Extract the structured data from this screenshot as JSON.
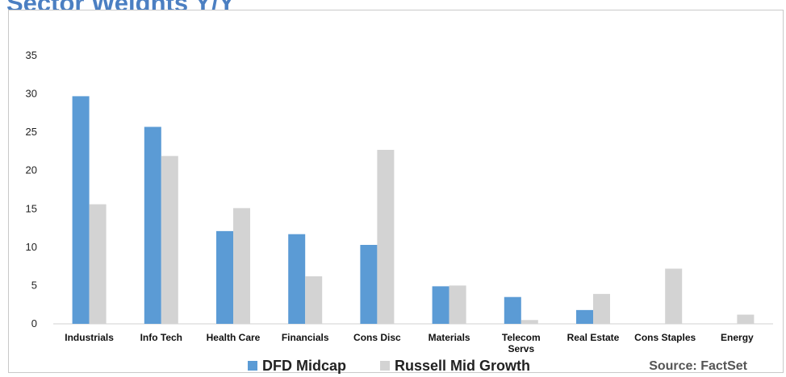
{
  "page": {
    "title": "Sector Weights Y/Y",
    "source": "Source: FactSet"
  },
  "chart_data": {
    "type": "bar",
    "categories": [
      "Industrials",
      "Info Tech",
      "Health Care",
      "Financials",
      "Cons Disc",
      "Materials",
      "Telecom Servs",
      "Real Estate",
      "Cons Staples",
      "Energy"
    ],
    "series": [
      {
        "name": "DFD Midcap",
        "color": "#5b9bd5",
        "values": [
          29.7,
          25.7,
          12.1,
          11.7,
          10.3,
          4.9,
          3.5,
          1.8,
          0.0,
          0.0
        ]
      },
      {
        "name": "Russell Mid Growth",
        "color": "#d3d3d3",
        "values": [
          15.6,
          21.9,
          15.1,
          6.2,
          22.7,
          5.0,
          0.5,
          3.9,
          7.2,
          1.2
        ]
      }
    ],
    "ylim": [
      0,
      35
    ],
    "yticks": [
      0,
      5,
      10,
      15,
      20,
      25,
      30,
      35
    ],
    "grid": false,
    "legend_position": "bottom-center"
  }
}
